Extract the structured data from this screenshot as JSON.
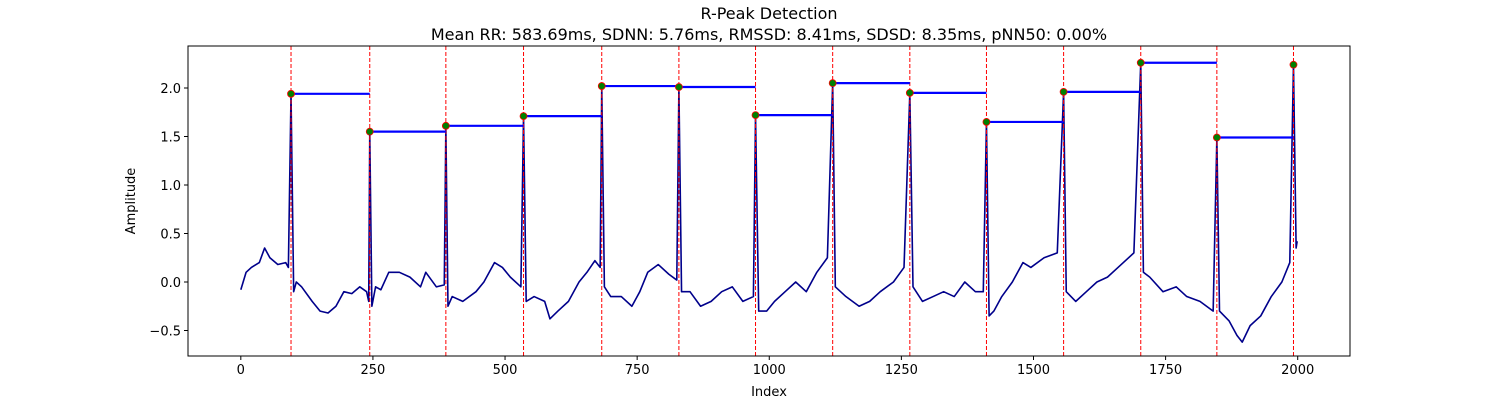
{
  "chart_data": {
    "type": "line",
    "title": "R-Peak Detection",
    "subtitle": "Mean RR: 583.69ms, SDNN: 5.76ms, RMSSD: 8.41ms, SDSD: 8.35ms, pNN50: 0.00%",
    "xlabel": "Index",
    "ylabel": "Amplitude",
    "xlim": [
      -99.95,
      2098.95
    ],
    "ylim": [
      -0.763,
      2.433
    ],
    "xticks": [
      0,
      250,
      500,
      750,
      1000,
      1250,
      1500,
      1750,
      2000
    ],
    "yticks": [
      {
        "value": -0.5,
        "label": "−0.5"
      },
      {
        "value": 0,
        "label": "0.0"
      },
      0.5,
      {
        "value": 1,
        "label": "1.0"
      },
      1.5,
      {
        "value": 2,
        "label": "2.0"
      }
    ],
    "series": [
      {
        "color": "#00008b",
        "x": [
          0,
          10,
          20,
          35,
          45,
          55,
          70,
          85,
          90,
          95,
          100,
          105,
          115,
          135,
          150,
          165,
          180,
          195,
          210,
          225,
          238,
          242,
          244,
          248,
          255,
          265,
          280,
          300,
          320,
          340,
          350,
          370,
          385,
          388,
          392,
          400,
          420,
          445,
          460,
          480,
          495,
          510,
          530,
          535,
          540,
          555,
          575,
          585,
          600,
          620,
          640,
          655,
          670,
          680,
          683,
          688,
          700,
          720,
          740,
          755,
          770,
          790,
          810,
          825,
          829,
          834,
          850,
          870,
          890,
          910,
          930,
          950,
          970,
          974,
          980,
          995,
          1010,
          1030,
          1050,
          1070,
          1090,
          1110,
          1120,
          1125,
          1145,
          1170,
          1190,
          1210,
          1235,
          1255,
          1266,
          1272,
          1290,
          1310,
          1330,
          1350,
          1370,
          1390,
          1405,
          1411,
          1416,
          1425,
          1440,
          1460,
          1480,
          1495,
          1520,
          1545,
          1557,
          1562,
          1580,
          1600,
          1620,
          1640,
          1660,
          1690,
          1703,
          1708,
          1720,
          1745,
          1770,
          1790,
          1815,
          1840,
          1847,
          1852,
          1870,
          1885,
          1895,
          1910,
          1930,
          1950,
          1970,
          1985,
          1992,
          1997,
          1999
        ],
        "values": [
          -0.08,
          0.1,
          0.15,
          0.2,
          0.35,
          0.25,
          0.18,
          0.2,
          0.15,
          1.94,
          -0.1,
          0,
          -0.05,
          -0.2,
          -0.3,
          -0.32,
          -0.25,
          -0.1,
          -0.12,
          -0.05,
          -0.1,
          -0.2,
          1.55,
          -0.25,
          -0.05,
          -0.08,
          0.1,
          0.1,
          0.05,
          -0.05,
          0.1,
          -0.05,
          -0.03,
          1.61,
          -0.25,
          -0.15,
          -0.2,
          -0.1,
          0,
          0.2,
          0.15,
          0.05,
          -0.05,
          1.71,
          -0.2,
          -0.15,
          -0.2,
          -0.38,
          -0.3,
          -0.2,
          0,
          0.1,
          0.22,
          0.15,
          2.02,
          -0.05,
          -0.15,
          -0.15,
          -0.25,
          -0.1,
          0.1,
          0.18,
          0.08,
          0.02,
          2.01,
          -0.1,
          -0.1,
          -0.25,
          -0.2,
          -0.1,
          -0.05,
          -0.2,
          -0.15,
          1.72,
          -0.3,
          -0.3,
          -0.2,
          -0.1,
          0,
          -0.1,
          0.1,
          0.25,
          2.05,
          -0.05,
          -0.15,
          -0.25,
          -0.2,
          -0.1,
          0,
          0.15,
          1.95,
          -0.05,
          -0.2,
          -0.15,
          -0.1,
          -0.15,
          0,
          -0.1,
          -0.1,
          1.65,
          -0.35,
          -0.3,
          -0.15,
          0,
          0.2,
          0.15,
          0.25,
          0.3,
          1.96,
          -0.1,
          -0.2,
          -0.1,
          0,
          0.05,
          0.15,
          0.3,
          2.26,
          0.1,
          0.05,
          -0.1,
          -0.05,
          -0.15,
          -0.2,
          -0.3,
          1.49,
          -0.3,
          -0.4,
          -0.55,
          -0.62,
          -0.45,
          -0.35,
          -0.15,
          0,
          0.2,
          2.24,
          0.35,
          0.42
        ]
      }
    ],
    "peaks": {
      "color": "#008000",
      "edgecolor": "#ff0000",
      "vline_color": "#ff0000",
      "rr_color": "#0000ff",
      "x": [
        95,
        244,
        388,
        535,
        683,
        829,
        974,
        1120,
        1266,
        1411,
        1557,
        1703,
        1847,
        1992
      ],
      "values": [
        1.94,
        1.55,
        1.61,
        1.71,
        2.02,
        2.01,
        1.72,
        2.05,
        1.95,
        1.65,
        1.96,
        2.26,
        1.49,
        2.24
      ]
    }
  }
}
